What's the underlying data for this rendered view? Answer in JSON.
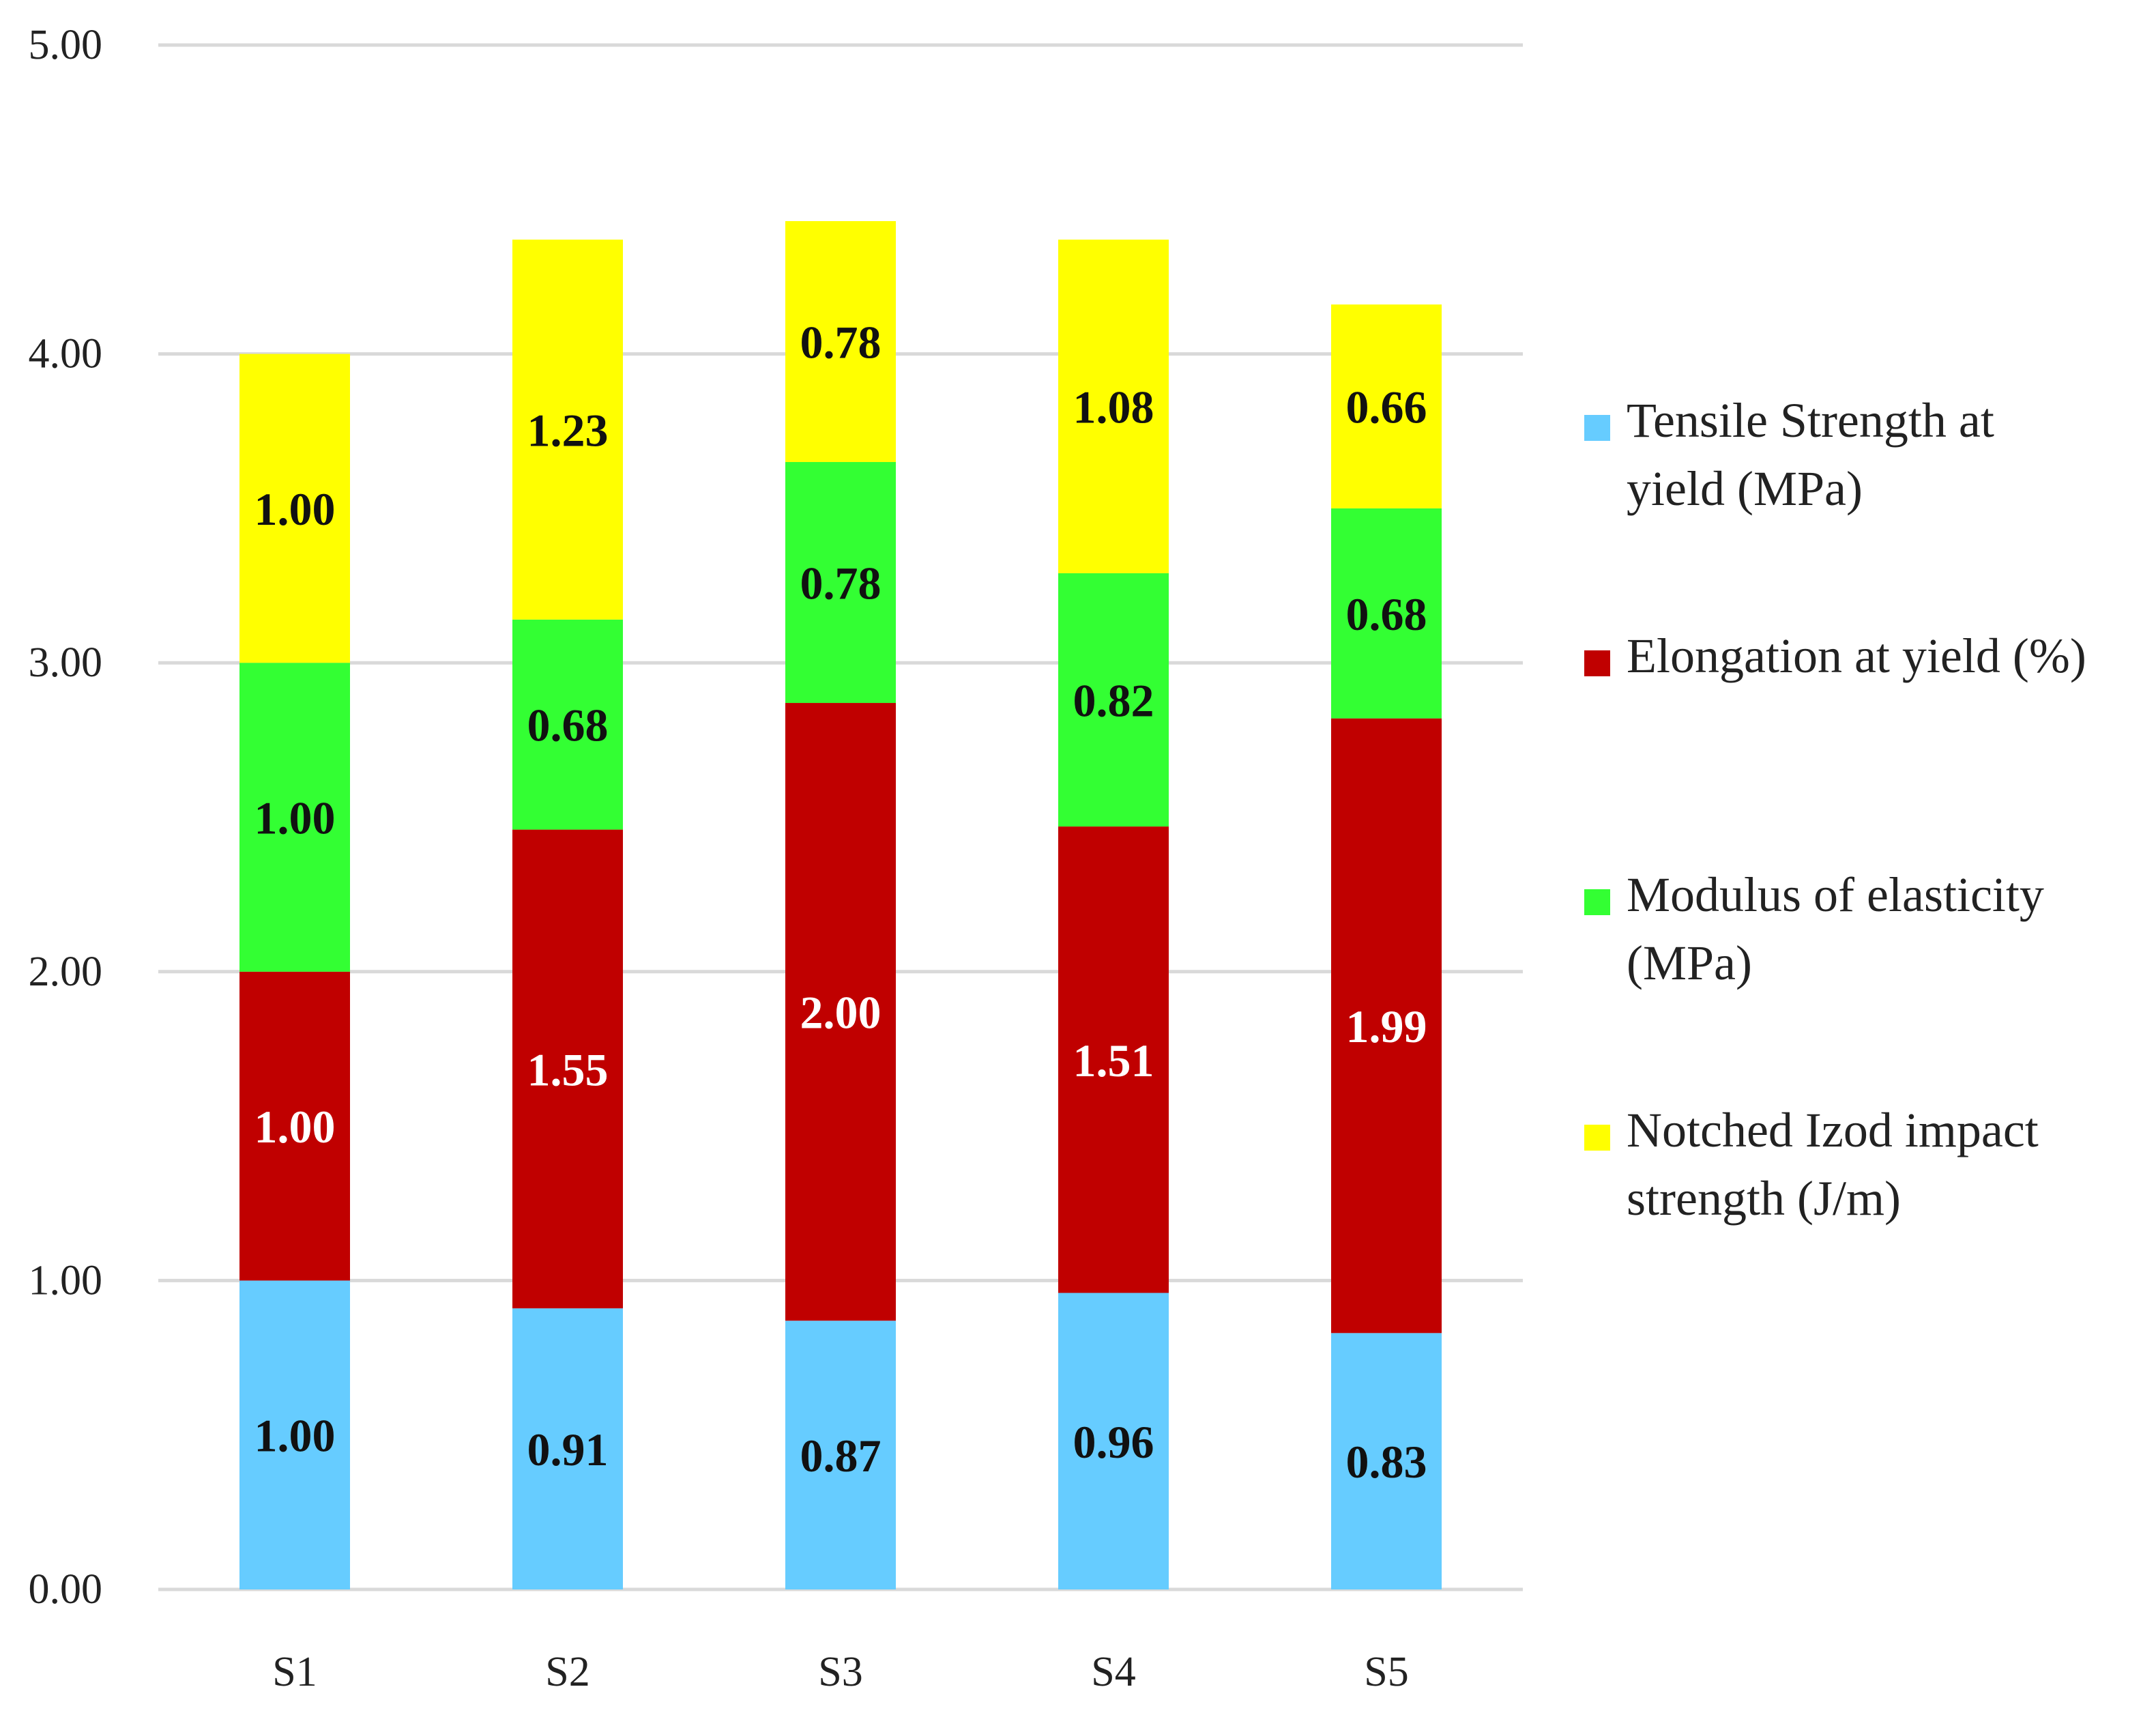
{
  "chart_data": {
    "type": "bar",
    "stacked": true,
    "title": "",
    "xlabel": "",
    "ylabel": "",
    "ylim": [
      0,
      5
    ],
    "yticks": [
      "0.00",
      "1.00",
      "2.00",
      "3.00",
      "4.00",
      "5.00"
    ],
    "grid": true,
    "legend_position": "right",
    "categories": [
      "S1",
      "S2",
      "S3",
      "S4",
      "S5"
    ],
    "series": [
      {
        "name": "Tensile Strength at yield  (MPa)",
        "legend_lines": [
          "Tensile Strength at",
          "yield  (MPa)"
        ],
        "color": "#66ccff",
        "label_color": "#111111",
        "values": [
          1.0,
          0.91,
          0.87,
          0.96,
          0.83
        ],
        "labels": [
          "1.00",
          "0.91",
          "0.87",
          "0.96",
          "0.83"
        ]
      },
      {
        "name": "Elongation at yield (%)",
        "legend_lines": [
          "Elongation at yield (%)"
        ],
        "color": "#c00000",
        "label_color": "#ffffff",
        "values": [
          1.0,
          1.55,
          2.0,
          1.51,
          1.99
        ],
        "labels": [
          "1.00",
          "1.55",
          "2.00",
          "1.51",
          "1.99"
        ]
      },
      {
        "name": "Modulus of elasticity (MPa)",
        "legend_lines": [
          "Modulus of elasticity",
          "(MPa)"
        ],
        "color": "#33ff33",
        "label_color": "#111111",
        "values": [
          1.0,
          0.68,
          0.78,
          0.82,
          0.68
        ],
        "labels": [
          "1.00",
          "0.68",
          "0.78",
          "0.82",
          "0.68"
        ]
      },
      {
        "name": "Notched Izod impact strength (J/m)",
        "legend_lines": [
          "Notched Izod impact",
          "strength (J/m)"
        ],
        "color": "#ffff00",
        "label_color": "#111111",
        "values": [
          1.0,
          1.23,
          0.78,
          1.08,
          0.66
        ],
        "labels": [
          "1.00",
          "1.23",
          "0.78",
          "1.08",
          "0.66"
        ]
      }
    ]
  }
}
